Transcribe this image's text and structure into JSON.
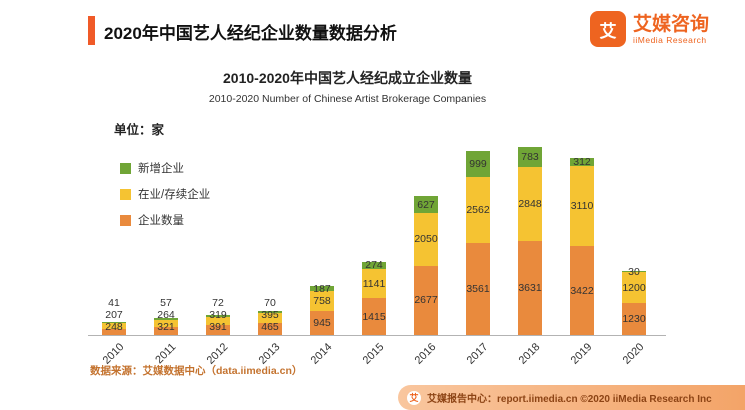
{
  "header": {
    "title": "2020年中国艺人经纪企业数量数据分析",
    "logo_cn": "艾媒咨询",
    "logo_en": "iiMedia Research",
    "logo_glyph": "艾",
    "brand_color": "#EE6420"
  },
  "chart": {
    "title_cn": "2010-2020年中国艺人经纪成立企业数量",
    "title_en": "2010-2020 Number of Chinese Artist Brokerage Companies",
    "unit_label": "单位：家"
  },
  "chart_data": {
    "type": "bar",
    "stacked": true,
    "title": "2010-2020年中国艺人经纪成立企业数量",
    "subtitle": "2010-2020 Number of Chinese Artist Brokerage Companies",
    "unit": "家",
    "grid": false,
    "legend_position": "left",
    "categories": [
      "2010",
      "2011",
      "2012",
      "2013",
      "2014",
      "2015",
      "2016",
      "2017",
      "2018",
      "2019",
      "2020"
    ],
    "series": [
      {
        "name": "企业数量",
        "color": "#E98A3D",
        "values": [
          248,
          321,
          391,
          465,
          945,
          1415,
          2677,
          3561,
          3631,
          3422,
          1230
        ]
      },
      {
        "name": "在业/存续企业",
        "color": "#F5C332",
        "values": [
          207,
          264,
          319,
          395,
          758,
          1141,
          2050,
          2562,
          2848,
          3110,
          1200
        ]
      },
      {
        "name": "新增企业",
        "color": "#70A536",
        "values": [
          41,
          57,
          72,
          70,
          187,
          274,
          627,
          999,
          783,
          312,
          30
        ]
      }
    ],
    "legend_items": [
      {
        "label": "新增企业",
        "color": "#70A536"
      },
      {
        "label": "在业/存续企业",
        "color": "#F5C332"
      },
      {
        "label": "企业数量",
        "color": "#E98A3D"
      }
    ]
  },
  "footer": {
    "source": "数据来源：艾媒数据中心（data.iimedia.cn）",
    "ribbon": "艾媒报告中心：report.iimedia.cn  ©2020  iiMedia Research Inc",
    "ribbon_glyph": "艾"
  }
}
